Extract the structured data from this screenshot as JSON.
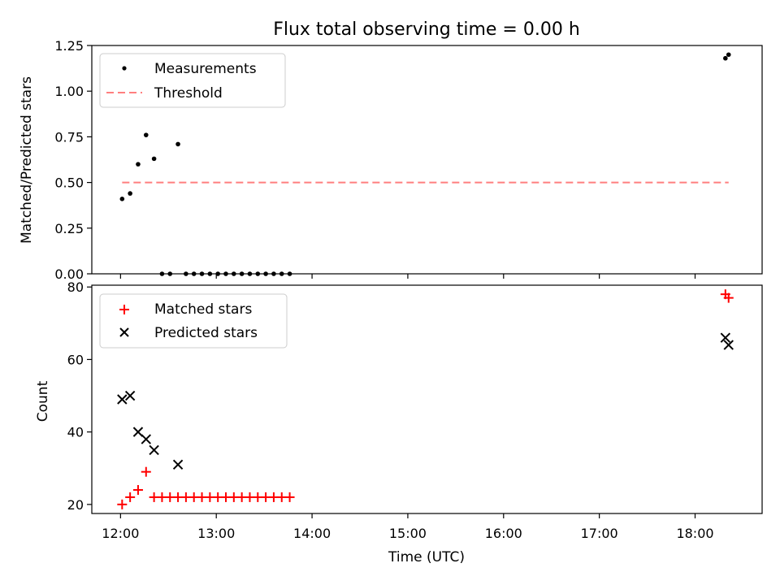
{
  "title": "Flux total observing time = 0.00 h",
  "colors": {
    "measurement": "#000000",
    "threshold": "#ff7f7f",
    "matched": "#ff0000",
    "predicted": "#000000"
  },
  "chart_data": [
    {
      "type": "scatter",
      "ylabel": "Matched/Predicted stars",
      "xlim": [
        "11:42",
        "18:42"
      ],
      "ylim": [
        0,
        1.25
      ],
      "yticks": [
        "0.00",
        "0.25",
        "0.50",
        "0.75",
        "1.00",
        "1.25"
      ],
      "legend_position": "top-left",
      "series": [
        {
          "name": "Measurements",
          "marker": "dot",
          "color": "#000000",
          "points": [
            {
              "x": "12:01",
              "y": 0.41
            },
            {
              "x": "12:06",
              "y": 0.44
            },
            {
              "x": "12:11",
              "y": 0.6
            },
            {
              "x": "12:16",
              "y": 0.76
            },
            {
              "x": "12:21",
              "y": 0.63
            },
            {
              "x": "12:26",
              "y": 0.0
            },
            {
              "x": "12:31",
              "y": 0.0
            },
            {
              "x": "12:36",
              "y": 0.71
            },
            {
              "x": "12:41",
              "y": 0.0
            },
            {
              "x": "12:46",
              "y": 0.0
            },
            {
              "x": "12:51",
              "y": 0.0
            },
            {
              "x": "12:56",
              "y": 0.0
            },
            {
              "x": "13:01",
              "y": 0.0
            },
            {
              "x": "13:06",
              "y": 0.0
            },
            {
              "x": "13:11",
              "y": 0.0
            },
            {
              "x": "13:16",
              "y": 0.0
            },
            {
              "x": "13:21",
              "y": 0.0
            },
            {
              "x": "13:26",
              "y": 0.0
            },
            {
              "x": "13:31",
              "y": 0.0
            },
            {
              "x": "13:36",
              "y": 0.0
            },
            {
              "x": "13:41",
              "y": 0.0
            },
            {
              "x": "13:46",
              "y": 0.0
            },
            {
              "x": "18:19",
              "y": 1.18
            },
            {
              "x": "18:21",
              "y": 1.2
            }
          ]
        },
        {
          "name": "Threshold",
          "marker": "dashed-line",
          "color": "#ff7f7f",
          "points": [
            {
              "x": "12:01",
              "y": 0.5
            },
            {
              "x": "18:21",
              "y": 0.5
            }
          ]
        }
      ]
    },
    {
      "type": "scatter",
      "xlabel": "Time (UTC)",
      "ylabel": "Count",
      "xlim": [
        "11:42",
        "18:42"
      ],
      "ylim": [
        17.5,
        80.5
      ],
      "yticks": [
        "20",
        "40",
        "60",
        "80"
      ],
      "xticks": [
        "12:00",
        "13:00",
        "14:00",
        "15:00",
        "16:00",
        "17:00",
        "18:00"
      ],
      "legend_position": "top-left",
      "series": [
        {
          "name": "Matched stars",
          "marker": "plus",
          "color": "#ff0000",
          "points": [
            {
              "x": "12:01",
              "y": 20
            },
            {
              "x": "12:06",
              "y": 22
            },
            {
              "x": "12:11",
              "y": 24
            },
            {
              "x": "12:16",
              "y": 29
            },
            {
              "x": "12:21",
              "y": 22
            },
            {
              "x": "12:26",
              "y": 22
            },
            {
              "x": "12:31",
              "y": 22
            },
            {
              "x": "12:36",
              "y": 22
            },
            {
              "x": "12:41",
              "y": 22
            },
            {
              "x": "12:46",
              "y": 22
            },
            {
              "x": "12:51",
              "y": 22
            },
            {
              "x": "12:56",
              "y": 22
            },
            {
              "x": "13:01",
              "y": 22
            },
            {
              "x": "13:06",
              "y": 22
            },
            {
              "x": "13:11",
              "y": 22
            },
            {
              "x": "13:16",
              "y": 22
            },
            {
              "x": "13:21",
              "y": 22
            },
            {
              "x": "13:26",
              "y": 22
            },
            {
              "x": "13:31",
              "y": 22
            },
            {
              "x": "13:36",
              "y": 22
            },
            {
              "x": "13:41",
              "y": 22
            },
            {
              "x": "13:46",
              "y": 22
            },
            {
              "x": "18:19",
              "y": 78
            },
            {
              "x": "18:21",
              "y": 77
            }
          ]
        },
        {
          "name": "Predicted stars",
          "marker": "x",
          "color": "#000000",
          "points": [
            {
              "x": "12:01",
              "y": 49
            },
            {
              "x": "12:06",
              "y": 50
            },
            {
              "x": "12:11",
              "y": 40
            },
            {
              "x": "12:16",
              "y": 38
            },
            {
              "x": "12:21",
              "y": 35
            },
            {
              "x": "12:36",
              "y": 31
            },
            {
              "x": "18:19",
              "y": 66
            },
            {
              "x": "18:21",
              "y": 64
            }
          ]
        }
      ]
    }
  ]
}
